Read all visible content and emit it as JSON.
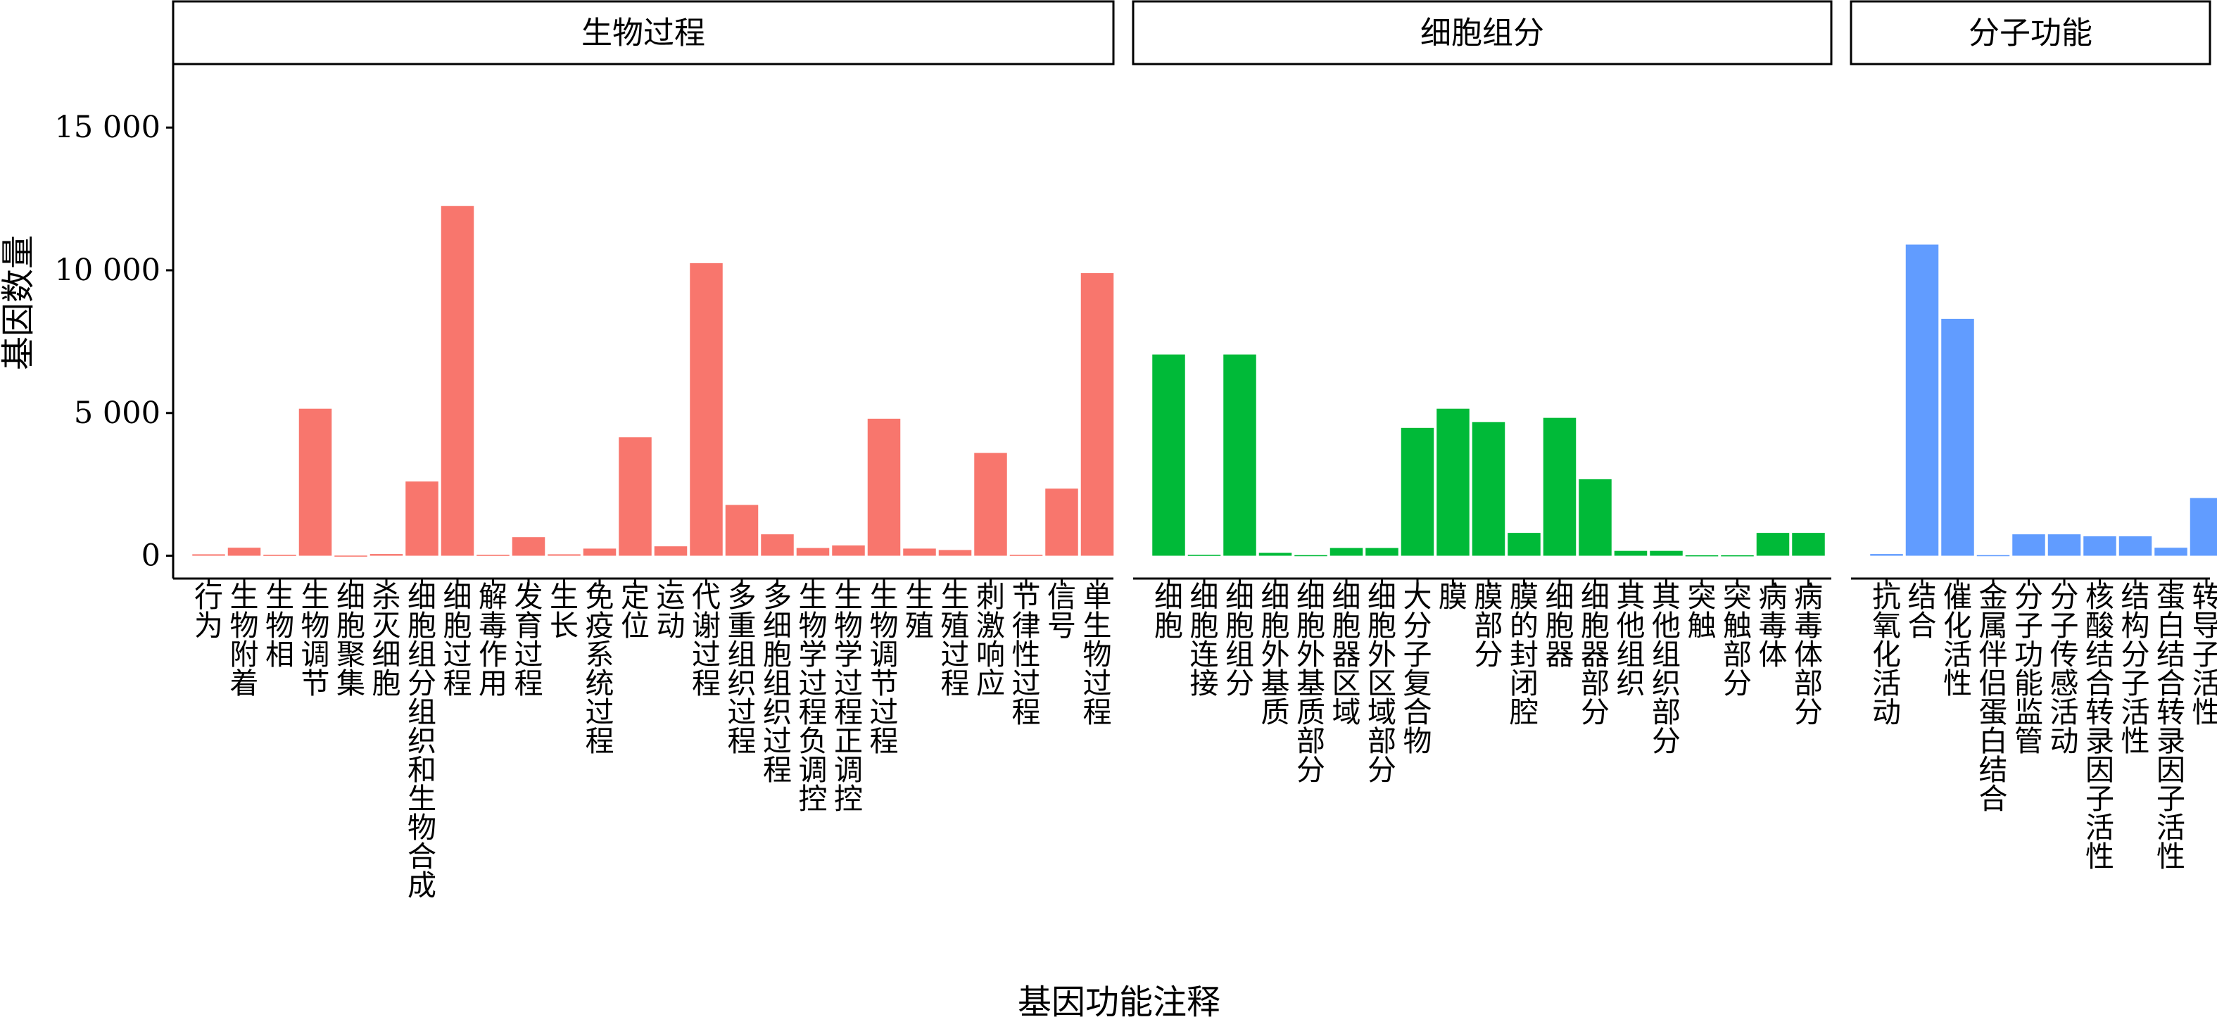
{
  "chart_data": {
    "type": "bar",
    "xlabel": "基因功能注释",
    "ylabel": "基因数量",
    "ylim": [
      -800,
      17200
    ],
    "yticks": [
      0,
      5000,
      10000,
      15000
    ],
    "ytick_labels": [
      "0",
      "5 000",
      "10 000",
      "15 000"
    ],
    "grid": false,
    "legend": "none",
    "panels": [
      {
        "name": "生物过程",
        "color": "#F8766D",
        "categories": [
          "行为",
          "生物附着",
          "生物相",
          "生物调节",
          "细胞聚集",
          "杀灭细胞",
          "细胞组分组织和生物合成",
          "细胞过程",
          "解毒作用",
          "发育过程",
          "生长",
          "免疫系统过程",
          "定位",
          "运动",
          "代谢过程",
          "多重组织过程",
          "多细胞组织过程",
          "生物学过程负调控",
          "生物学过程正调控",
          "生物调节过程",
          "生殖",
          "生殖过程",
          "刺激响应",
          "节律性过程",
          "信号",
          "单生物过程"
        ],
        "values": [
          50,
          280,
          30,
          5150,
          5,
          60,
          2600,
          12250,
          30,
          650,
          50,
          250,
          4150,
          330,
          10250,
          1780,
          750,
          270,
          360,
          4800,
          250,
          200,
          3600,
          30,
          2350,
          9900
        ]
      },
      {
        "name": "细胞组分",
        "color": "#00BA38",
        "categories": [
          "细胞",
          "细胞连接",
          "细胞组分",
          "细胞外基质",
          "细胞外基质部分",
          "细胞器区域",
          "细胞外区域部分",
          "大分子复合物",
          "膜",
          "膜部分",
          "膜的封闭腔",
          "细胞器",
          "细胞器部分",
          "其他组织",
          "其他组织部分",
          "突触",
          "突触部分",
          "病毒体",
          "病毒体部分"
        ],
        "values": [
          7050,
          30,
          7050,
          100,
          20,
          270,
          270,
          4480,
          5150,
          4680,
          800,
          4830,
          2680,
          170,
          170,
          15,
          15,
          800,
          800
        ]
      },
      {
        "name": "分子功能",
        "color": "#619CFF",
        "categories": [
          "抗氧化活动",
          "结合",
          "催化活性",
          "金属伴侣蛋白结合",
          "分子功能监管",
          "分子传感活动",
          "核酸结合转录因子活性",
          "结构分子活性",
          "蛋白结合转录因子活性",
          "转导子活性"
        ],
        "values": [
          60,
          10900,
          8300,
          20,
          750,
          750,
          680,
          680,
          280,
          2020
        ]
      }
    ]
  }
}
